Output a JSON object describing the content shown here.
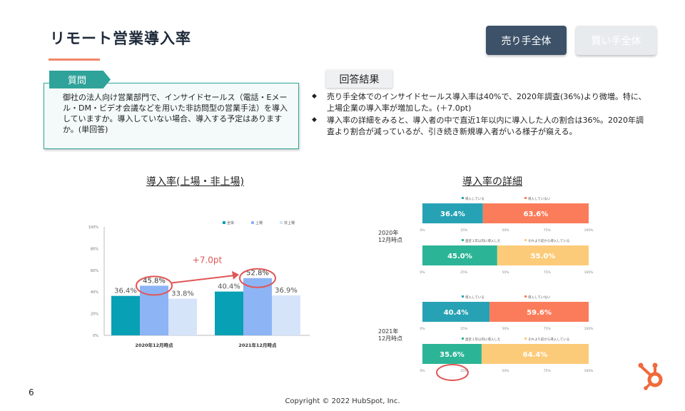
{
  "header": {
    "title": "リモート営業導入率"
  },
  "tabs": [
    {
      "label": "売り手全体",
      "active": true
    },
    {
      "label": "買い手全体",
      "active": false
    }
  ],
  "question": {
    "tag": "質問",
    "text": "御社の法人向け営業部門で、インサイドセールス（電話・Eメール・DM・ビデオ会議などを用いた非訪問型の営業手法）を導入していますか。導入していない場合、導入する予定はありますか。(単回答)"
  },
  "answer": {
    "tag": "回答結果",
    "bullets": [
      "売り手全体でのインサイドセールス導入率は40%で、2020年調査(36%)より微増。特に、上場企業の導入率が増加した。(＋7.0pt)",
      "導入率の詳細をみると、導入者の中で直近1年以内に導入した人の割合は36%。2020年調査より割合が減っているが、引き続き新規導入者がいる様子が窺える。"
    ]
  },
  "colors": {
    "total": "#08a0b5",
    "listed": "#8db4f5",
    "unlisted": "#d6e4fa",
    "adopted": "#27a2b5",
    "not_adopted": "#fb7c5a",
    "recent": "#2cb497",
    "earlier": "#fccb79",
    "highlight": "#e05656",
    "accent": "#f06a3a"
  },
  "chart_data": [
    {
      "type": "bar",
      "title": "導入率(上場・非上場)",
      "categories": [
        "2020年12月時点",
        "2021年12月時点"
      ],
      "series": [
        {
          "name": "全体",
          "values": [
            36.4,
            40.4
          ],
          "labels": [
            "36.4%",
            "40.4%"
          ]
        },
        {
          "name": "上場",
          "values": [
            45.8,
            52.8
          ],
          "labels": [
            "45.8%",
            "52.8%"
          ]
        },
        {
          "name": "非上場",
          "values": [
            33.8,
            36.9
          ],
          "labels": [
            "33.8%",
            "36.9%"
          ]
        }
      ],
      "yticks": [
        "0%",
        "20%",
        "40%",
        "60%",
        "80%",
        "100%"
      ],
      "ylim": [
        0,
        100
      ],
      "legend": "top-right",
      "annotation": "+7.0pt"
    },
    {
      "type": "bar",
      "orientation": "horizontal-stacked",
      "title": "導入率の詳細",
      "groups": [
        {
          "period": "2020年\n12月時点",
          "bars": [
            {
              "legend": [
                "導入している",
                "導入していない"
              ],
              "values": [
                36.4,
                63.6
              ],
              "labels": [
                "36.4%",
                "63.6%"
              ]
            },
            {
              "legend": [
                "直近１年以内に導入した",
                "それより前から導入している"
              ],
              "values": [
                45.0,
                55.0
              ],
              "labels": [
                "45.0%",
                "55.0%"
              ]
            }
          ]
        },
        {
          "period": "2021年\n12月時点",
          "bars": [
            {
              "legend": [
                "導入している",
                "導入していない"
              ],
              "values": [
                40.4,
                59.6
              ],
              "labels": [
                "40.4%",
                "59.6%"
              ]
            },
            {
              "legend": [
                "直近１年以内に導入した",
                "それより前から導入している"
              ],
              "values": [
                35.6,
                64.4
              ],
              "labels": [
                "35.6%",
                "64.4%"
              ]
            }
          ]
        }
      ],
      "xticks": [
        "0%",
        "25%",
        "50%",
        "75%",
        "100%"
      ],
      "xlim": [
        0,
        100
      ]
    }
  ],
  "footer": {
    "page": "6",
    "copyright": "Copyright © 2022 HubSpot, Inc."
  },
  "logo_icon": "hubspot-sprocket-icon"
}
